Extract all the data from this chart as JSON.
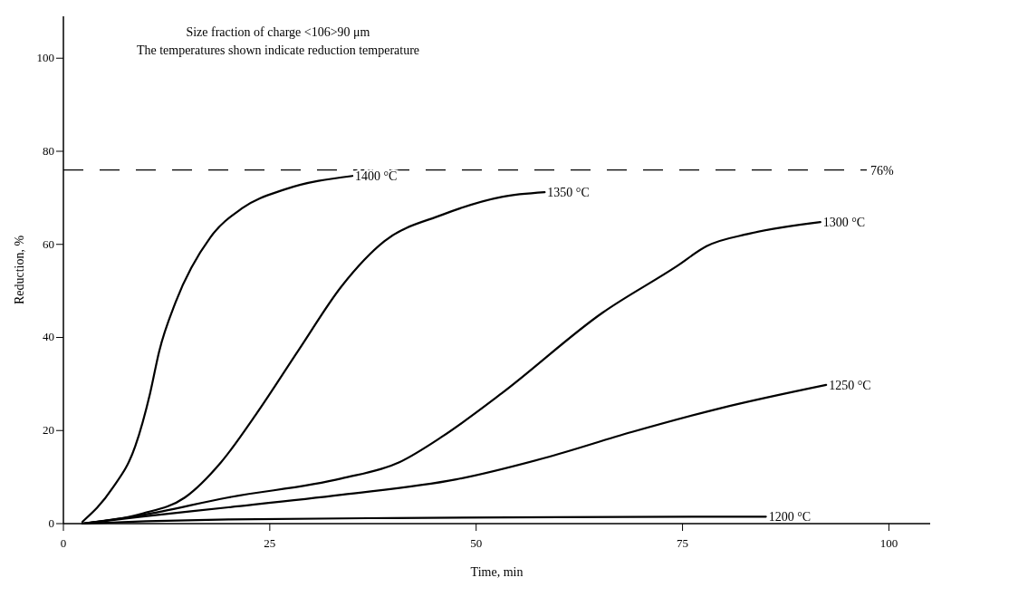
{
  "chart_data": {
    "type": "line",
    "xlabel": "Time, min",
    "ylabel": "Reduction, %",
    "annotations": [
      "Size fraction of charge <106>90 μm",
      "The temperatures shown indicate reduction temperature"
    ],
    "xlim": [
      0,
      105
    ],
    "ylim": [
      0,
      109
    ],
    "xticks": [
      0,
      25,
      50,
      75,
      100
    ],
    "yticks": [
      0,
      20,
      40,
      60,
      80,
      100
    ],
    "grid": false,
    "marker": "none",
    "line_style": "solid",
    "ref_lines": [
      {
        "axis": "y",
        "value": 76,
        "label": "76%",
        "line_style": "dashed"
      }
    ],
    "series": [
      {
        "name": "1400 °C",
        "color": "#000000",
        "x": [
          2.3,
          5.9,
          8.7,
          10.5,
          11.6,
          13.6,
          17.8,
          21.6,
          26.8,
          35
        ],
        "values": [
          0.4,
          7.5,
          16.6,
          28,
          37,
          47.6,
          61.5,
          67.7,
          71.8,
          74.7
        ]
      },
      {
        "name": "1350 °C",
        "color": "#000000",
        "x": [
          2.3,
          9.4,
          14.7,
          19.1,
          23.3,
          28.5,
          33.7,
          38.9,
          45.8,
          53.1,
          58.3
        ],
        "values": [
          0,
          2.1,
          5.6,
          13.2,
          23.4,
          37.3,
          51,
          60.7,
          66.3,
          70.2,
          71.2
        ]
      },
      {
        "name": "1300 °C",
        "color": "#000000",
        "x": [
          2.3,
          9.4,
          19.9,
          33.7,
          40.7,
          45.8,
          53.1,
          65.3,
          74.3,
          77.9,
          83.1,
          91.7
        ],
        "values": [
          0,
          1.8,
          5.6,
          9.7,
          13.2,
          18.6,
          28,
          45.3,
          55.3,
          59.6,
          62.3,
          64.8
        ]
      },
      {
        "name": "1250 °C",
        "color": "#000000",
        "x": [
          2.3,
          9.4,
          20,
          33.7,
          47.6,
          58.3,
          68.9,
          79.6,
          92.4
        ],
        "values": [
          0,
          1.5,
          3.5,
          6.2,
          9.5,
          14.1,
          19.7,
          24.8,
          29.8
        ]
      },
      {
        "name": "1200 °C",
        "color": "#000000",
        "x": [
          2.3,
          10,
          20,
          40,
          60,
          85.1
        ],
        "values": [
          0,
          0.5,
          0.9,
          1.2,
          1.4,
          1.5
        ]
      }
    ]
  }
}
